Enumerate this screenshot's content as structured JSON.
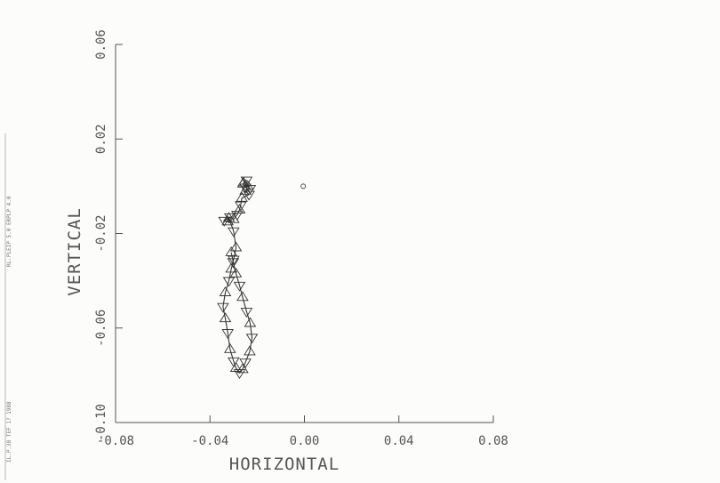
{
  "chart_data": {
    "type": "line",
    "title": "",
    "xlabel": "HORIZONTAL",
    "ylabel": "VERTICAL",
    "xlim": [
      -0.08,
      0.08
    ],
    "ylim": [
      -0.1,
      0.06
    ],
    "x_ticks": [
      "-0.08",
      "-0.04",
      "0.00",
      "0.04",
      "0.08"
    ],
    "y_ticks": [
      "-0.10",
      "-0.06",
      "-0.02",
      "0.02",
      "0.06"
    ],
    "x_tick_values": [
      -0.08,
      -0.04,
      0.0,
      0.04,
      0.08
    ],
    "y_tick_values": [
      -0.1,
      -0.06,
      -0.02,
      0.02,
      0.06
    ],
    "grid": false,
    "series": [
      {
        "marker": "triangle",
        "x": [
          -0.0258,
          -0.0245,
          -0.026,
          -0.025,
          -0.024,
          -0.023,
          -0.025,
          -0.0235,
          -0.0265,
          -0.027,
          -0.0275,
          -0.0285,
          -0.03,
          -0.0315,
          -0.0325,
          -0.034,
          -0.032,
          -0.03,
          -0.029,
          -0.03,
          -0.031,
          -0.032,
          -0.0335,
          -0.0345,
          -0.0335,
          -0.0325,
          -0.0315,
          -0.03,
          -0.029,
          -0.0275,
          -0.0262,
          -0.025,
          -0.0232,
          -0.0222,
          -0.023,
          -0.0245,
          -0.0262,
          -0.0275,
          -0.029,
          -0.0302,
          -0.031
        ],
        "y": [
          0.0015,
          0.0025,
          0.001,
          -0.0005,
          0.0,
          -0.001,
          -0.002,
          -0.0035,
          -0.005,
          -0.008,
          -0.01,
          -0.012,
          -0.014,
          -0.013,
          -0.015,
          -0.0145,
          -0.0135,
          -0.019,
          -0.026,
          -0.031,
          -0.035,
          -0.04,
          -0.045,
          -0.051,
          -0.056,
          -0.062,
          -0.069,
          -0.074,
          -0.077,
          -0.079,
          -0.0775,
          -0.0745,
          -0.07,
          -0.064,
          -0.058,
          -0.053,
          -0.047,
          -0.042,
          -0.037,
          -0.032,
          -0.028
        ]
      },
      {
        "marker": "circle",
        "x": [
          -0.0005
        ],
        "y": [
          0.0
        ]
      }
    ]
  },
  "margin": {
    "top_text": "RL.PLEIP 5.0 ERPLP 4.0",
    "bottom_text": "IL.P.38 TEF 1? 1988"
  }
}
